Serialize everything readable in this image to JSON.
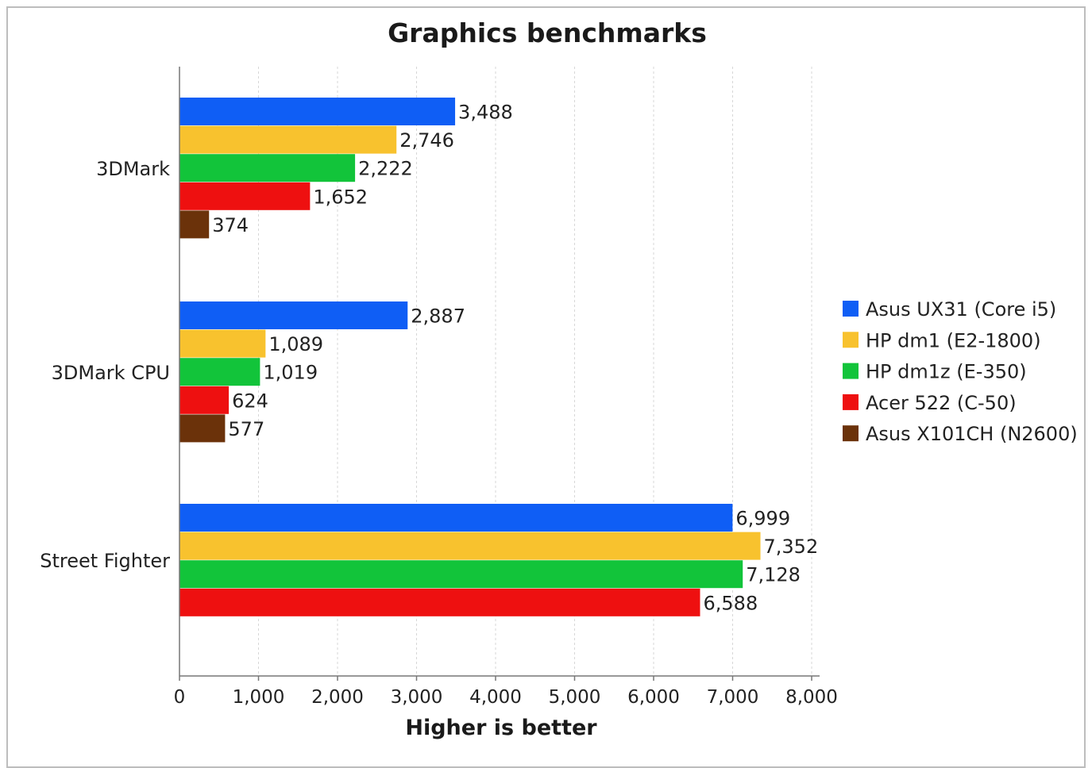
{
  "chart_data": {
    "type": "bar",
    "orientation": "horizontal",
    "title": "Graphics benchmarks",
    "xlabel": "Higher is better",
    "ylabel": "",
    "categories": [
      "3DMark",
      "3DMark CPU",
      "Street Fighter"
    ],
    "xlim": [
      0,
      8000
    ],
    "xticks": [
      0,
      1000,
      2000,
      3000,
      4000,
      5000,
      6000,
      7000,
      8000
    ],
    "xtick_labels": [
      "0",
      "1,000",
      "2,000",
      "3,000",
      "4,000",
      "5,000",
      "6,000",
      "7,000",
      "8,000"
    ],
    "grid": true,
    "legend_position": "right",
    "series": [
      {
        "name": "Asus UX31 (Core i5)",
        "color": "#0f5ef5",
        "values": [
          3488,
          2887,
          6999
        ],
        "labels": [
          "3,488",
          "2,887",
          "6,999"
        ]
      },
      {
        "name": "HP dm1 (E2-1800)",
        "color": "#f8c22e",
        "values": [
          2746,
          1089,
          7352
        ],
        "labels": [
          "2,746",
          "1,089",
          "7,352"
        ]
      },
      {
        "name": "HP dm1z (E-350)",
        "color": "#12c43a",
        "values": [
          2222,
          1019,
          7128
        ],
        "labels": [
          "2,222",
          "1,019",
          "7,128"
        ]
      },
      {
        "name": "Acer 522 (C-50)",
        "color": "#ee1010",
        "values": [
          1652,
          624,
          6588
        ],
        "labels": [
          "1,652",
          "624",
          "6,588"
        ]
      },
      {
        "name": "Asus X101CH (N2600)",
        "color": "#6b320a",
        "values": [
          374,
          577,
          null
        ],
        "labels": [
          "374",
          "577",
          ""
        ]
      }
    ]
  }
}
